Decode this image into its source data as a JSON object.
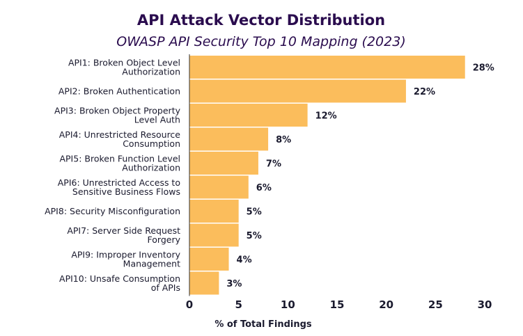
{
  "chart_data": {
    "type": "bar",
    "orientation": "horizontal",
    "title": "API Attack Vector Distribution",
    "subtitle": "OWASP API Security Top 10 Mapping (2023)",
    "xlabel": "% of Total Findings",
    "ylabel": "",
    "xlim": [
      0,
      30
    ],
    "xticks": [
      0,
      5,
      10,
      15,
      20,
      25,
      30
    ],
    "grid": false,
    "categories": [
      [
        "API1: Broken Object Level",
        "Authorization"
      ],
      [
        "API2: Broken Authentication"
      ],
      [
        "API3: Broken Object Property",
        "Level Auth"
      ],
      [
        "API4: Unrestricted Resource",
        "Consumption"
      ],
      [
        "API5: Broken Function  Level",
        "Authorization"
      ],
      [
        "API6: Unrestricted Access to",
        "Sensitive Business Flows"
      ],
      [
        "API8: Security Misconfiguration"
      ],
      [
        "API7: Server Side Request",
        "Forgery"
      ],
      [
        "API9: Improper Inventory",
        "Management"
      ],
      [
        "API10: Unsafe Consumption",
        "of APIs"
      ]
    ],
    "values": [
      28,
      22,
      12,
      8,
      7,
      6,
      5,
      5,
      4,
      3
    ],
    "value_labels": [
      "28%",
      "22%",
      "12%",
      "8%",
      "7%",
      "6%",
      "5%",
      "5%",
      "4%",
      "3%"
    ]
  },
  "colors": {
    "bar": "#fbbd5c",
    "title": "#2a0c4e",
    "text": "#1a1a2e",
    "axis": "#333333"
  }
}
